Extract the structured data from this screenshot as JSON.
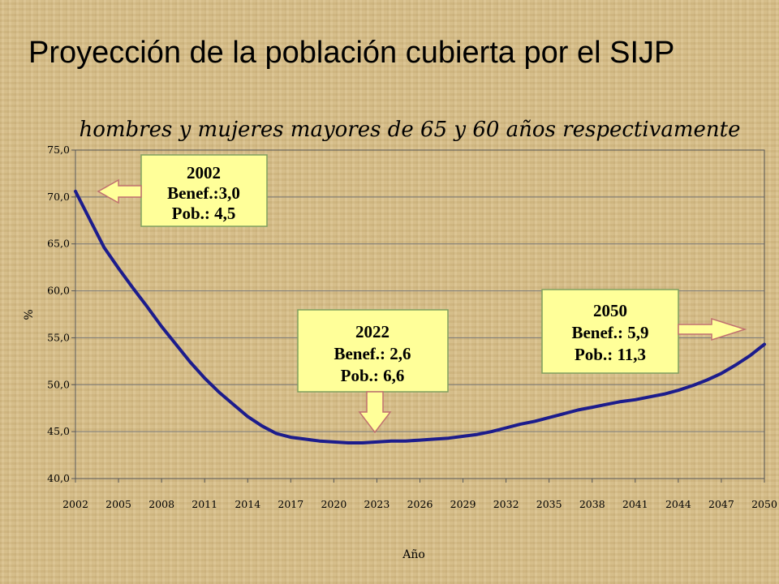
{
  "slide": {
    "title": "Proyección de la población cubierta por el SIJP"
  },
  "colors": {
    "line": "#1c1c8c",
    "box_fill": "#ffff99",
    "box_stroke": "#7f9f5f",
    "arrow_fill": "#ffff99",
    "arrow_stroke": "#c07070"
  },
  "chart_data": {
    "type": "line",
    "title": "hombres y mujeres mayores de 65 y 60 años respectivamente",
    "xlabel": "Año",
    "ylabel": "%",
    "xlim": [
      2002,
      2050
    ],
    "ylim": [
      40,
      75
    ],
    "x_ticks": [
      "2002",
      "2005",
      "2008",
      "2011",
      "2014",
      "2017",
      "2020",
      "2023",
      "2026",
      "2029",
      "2032",
      "2035",
      "2038",
      "2041",
      "2044",
      "2047",
      "2050"
    ],
    "y_ticks": [
      "40,0",
      "45,0",
      "50,0",
      "55,0",
      "60,0",
      "65,0",
      "70,0",
      "75,0"
    ],
    "grid": "horizontal",
    "legend": "none",
    "series": [
      {
        "x": [
          2002,
          2003,
          2004,
          2005,
          2006,
          2007,
          2008,
          2009,
          2010,
          2011,
          2012,
          2013,
          2014,
          2015,
          2016,
          2017,
          2018,
          2019,
          2020,
          2021,
          2022,
          2023,
          2024,
          2025,
          2026,
          2027,
          2028,
          2029,
          2030,
          2031,
          2032,
          2033,
          2034,
          2035,
          2036,
          2037,
          2038,
          2039,
          2040,
          2041,
          2042,
          2043,
          2044,
          2045,
          2046,
          2047,
          2048,
          2049,
          2050
        ],
        "values": [
          70.6,
          67.6,
          64.6,
          62.4,
          60.3,
          58.3,
          56.2,
          54.3,
          52.4,
          50.7,
          49.2,
          47.9,
          46.6,
          45.6,
          44.8,
          44.4,
          44.2,
          44.0,
          43.9,
          43.8,
          43.8,
          43.9,
          44.0,
          44.0,
          44.1,
          44.2,
          44.3,
          44.5,
          44.7,
          45.0,
          45.4,
          45.8,
          46.1,
          46.5,
          46.9,
          47.3,
          47.6,
          47.9,
          48.2,
          48.4,
          48.7,
          49.0,
          49.4,
          49.9,
          50.5,
          51.2,
          52.1,
          53.1,
          54.3
        ]
      }
    ],
    "annotations": [
      {
        "year": "2002",
        "benef": "Benef.:3,0",
        "pob": "Pob.: 4,5"
      },
      {
        "year": "2022",
        "benef": "Benef.: 2,6",
        "pob": "Pob.: 6,6"
      },
      {
        "year": "2050",
        "benef": "Benef.: 5,9",
        "pob": "Pob.: 11,3"
      }
    ]
  }
}
